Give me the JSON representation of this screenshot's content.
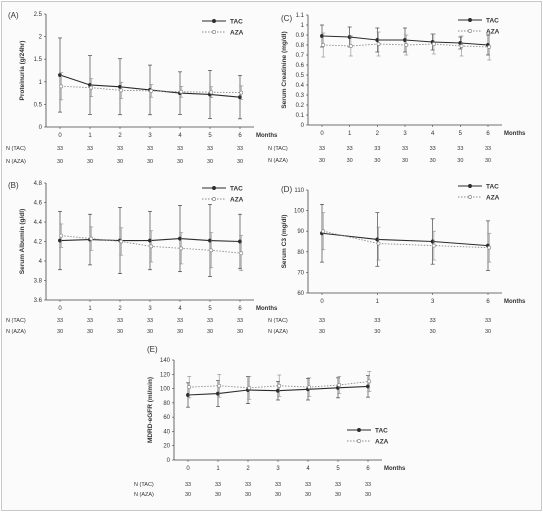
{
  "chart_data": [
    {
      "type": "line",
      "panel_label": "(A)",
      "ylabel": "Proteinuria (g/24hr)",
      "xlabel": "Months",
      "x": [
        0,
        1,
        2,
        3,
        4,
        5,
        6
      ],
      "ylim": [
        0,
        2.5
      ],
      "yticks": [
        "0",
        "0.5",
        "1",
        "1.5",
        "2",
        "2.5"
      ],
      "legend_position": "top-right",
      "series": [
        {
          "name": "TAC",
          "values": [
            1.15,
            0.93,
            0.89,
            0.82,
            0.75,
            0.72,
            0.66
          ],
          "err": [
            0.82,
            0.65,
            0.62,
            0.55,
            0.47,
            0.53,
            0.48
          ]
        },
        {
          "name": "AZA",
          "values": [
            0.9,
            0.87,
            0.81,
            0.8,
            0.78,
            0.77,
            0.76
          ],
          "err": [
            0.3,
            0.2,
            0.18,
            0.14,
            0.12,
            0.12,
            0.15
          ]
        }
      ],
      "n_rows": [
        {
          "label": "N (TAC)",
          "values": [
            "33",
            "33",
            "33",
            "33",
            "33",
            "33",
            "33"
          ]
        },
        {
          "label": "N (AZA)",
          "values": [
            "30",
            "30",
            "30",
            "30",
            "30",
            "30",
            "30"
          ]
        }
      ]
    },
    {
      "type": "line",
      "panel_label": "(C)",
      "ylabel": "Serum Creatinine (mg/dl)",
      "xlabel": "Months",
      "x": [
        0,
        1,
        2,
        3,
        4,
        5,
        6
      ],
      "ylim": [
        0,
        1.1
      ],
      "yticks": [
        "0",
        "0.1",
        "0.2",
        "0.3",
        "0.4",
        "0.5",
        "0.6",
        "0.7",
        "0.8",
        "0.9",
        "1",
        "1.1"
      ],
      "legend_position": "top-right",
      "series": [
        {
          "name": "TAC",
          "values": [
            0.89,
            0.88,
            0.85,
            0.85,
            0.83,
            0.82,
            0.8
          ],
          "err": [
            0.11,
            0.1,
            0.12,
            0.12,
            0.08,
            0.06,
            0.1
          ]
        },
        {
          "name": "AZA",
          "values": [
            0.8,
            0.79,
            0.81,
            0.8,
            0.81,
            0.79,
            0.78
          ],
          "err": [
            0.12,
            0.1,
            0.12,
            0.1,
            0.1,
            0.1,
            0.13
          ]
        }
      ],
      "n_rows": [
        {
          "label": "N (TAC)",
          "values": [
            "33",
            "33",
            "33",
            "33",
            "33",
            "33",
            "33"
          ]
        },
        {
          "label": "N (AZA)",
          "values": [
            "30",
            "30",
            "30",
            "30",
            "30",
            "30",
            "30"
          ]
        }
      ]
    },
    {
      "type": "line",
      "panel_label": "(B)",
      "ylabel": "Serum Albumin (g/dl)",
      "xlabel": "Months",
      "x": [
        0,
        1,
        2,
        3,
        4,
        5,
        6
      ],
      "ylim": [
        3.6,
        4.8
      ],
      "yticks": [
        "3.6",
        "3.8",
        "4",
        "4.2",
        "4.4",
        "4.6",
        "4.8"
      ],
      "legend_position": "top-right",
      "series": [
        {
          "name": "TAC",
          "values": [
            4.21,
            4.22,
            4.21,
            4.21,
            4.23,
            4.21,
            4.2
          ],
          "err": [
            0.3,
            0.26,
            0.34,
            0.3,
            0.34,
            0.37,
            0.28
          ]
        },
        {
          "name": "AZA",
          "values": [
            4.26,
            4.23,
            4.2,
            4.15,
            4.13,
            4.11,
            4.08
          ],
          "err": [
            0.12,
            0.12,
            0.14,
            0.16,
            0.16,
            0.18,
            0.18
          ]
        }
      ],
      "n_rows": [
        {
          "label": "N (TAC)",
          "values": [
            "33",
            "33",
            "33",
            "33",
            "33",
            "33",
            "33"
          ]
        },
        {
          "label": "N (AZA)",
          "values": [
            "30",
            "30",
            "30",
            "30",
            "30",
            "30",
            "30"
          ]
        }
      ]
    },
    {
      "type": "line",
      "panel_label": "(D)",
      "ylabel": "Serum C3 (mg/dl)",
      "xlabel": "Months",
      "x": [
        0,
        1,
        3,
        6
      ],
      "ylim": [
        60,
        110
      ],
      "yticks": [
        "60",
        "70",
        "80",
        "90",
        "100",
        "110"
      ],
      "legend_position": "top-right",
      "series": [
        {
          "name": "TAC",
          "values": [
            89,
            86,
            85,
            83
          ],
          "err": [
            14,
            13,
            11,
            12
          ]
        },
        {
          "name": "AZA",
          "values": [
            90,
            84,
            83,
            82
          ],
          "err": [
            9,
            8,
            7,
            7
          ]
        }
      ],
      "n_rows": [
        {
          "label": "N (TAC)",
          "values": [
            "33",
            "33",
            "33",
            "33"
          ]
        },
        {
          "label": "N (AZA)",
          "values": [
            "30",
            "30",
            "30",
            "30"
          ]
        }
      ]
    },
    {
      "type": "line",
      "panel_label": "(E)",
      "ylabel": "MDRD-eGFR (ml/min)",
      "xlabel": "Months",
      "x": [
        0,
        1,
        2,
        3,
        4,
        5,
        6
      ],
      "ylim": [
        0,
        140
      ],
      "yticks": [
        "0",
        "20",
        "40",
        "60",
        "80",
        "100",
        "120",
        "140"
      ],
      "legend_position": "bottom-right",
      "series": [
        {
          "name": "TAC",
          "values": [
            91,
            93,
            98,
            97,
            99,
            101,
            103
          ],
          "err": [
            17,
            18,
            19,
            13,
            15,
            14,
            15
          ]
        },
        {
          "name": "AZA",
          "values": [
            102,
            104,
            101,
            104,
            102,
            105,
            110
          ],
          "err": [
            15,
            16,
            16,
            15,
            13,
            12,
            14
          ]
        }
      ],
      "n_rows": [
        {
          "label": "N (TAC)",
          "values": [
            "33",
            "33",
            "33",
            "33",
            "33",
            "33",
            "33"
          ]
        },
        {
          "label": "N (AZA)",
          "values": [
            "30",
            "30",
            "30",
            "30",
            "30",
            "30",
            "30"
          ]
        }
      ]
    }
  ],
  "colors": {
    "tac": "#2b2b2b",
    "aza": "#8a8a8a",
    "axis": "#444444",
    "frame": "#c9c9c9"
  }
}
